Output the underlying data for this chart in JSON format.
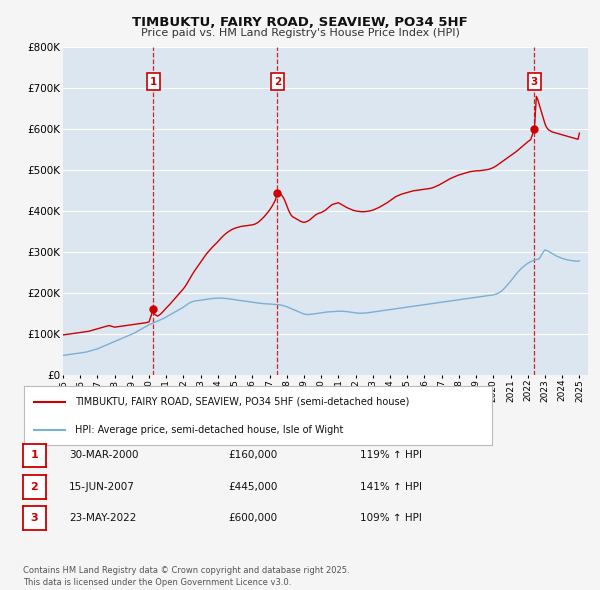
{
  "title": "TIMBUKTU, FAIRY ROAD, SEAVIEW, PO34 5HF",
  "subtitle": "Price paid vs. HM Land Registry's House Price Index (HPI)",
  "background_color": "#f5f5f5",
  "plot_bg_color": "#dce6f0",
  "grid_color": "#ffffff",
  "red_line_color": "#cc0000",
  "blue_line_color": "#7bafd4",
  "ylabel_range": [
    0,
    800000
  ],
  "ytick_step": 100000,
  "xmin": 1995.0,
  "xmax": 2025.5,
  "sale_dates": [
    2000.247,
    2007.458,
    2022.388
  ],
  "sale_prices": [
    160000,
    445000,
    600000
  ],
  "sale_labels": [
    "1",
    "2",
    "3"
  ],
  "sale_date_labels": [
    "30-MAR-2000",
    "15-JUN-2007",
    "23-MAY-2022"
  ],
  "sale_price_labels": [
    "£160,000",
    "£445,000",
    "£600,000"
  ],
  "sale_hpi_labels": [
    "119% ↑ HPI",
    "141% ↑ HPI",
    "109% ↑ HPI"
  ],
  "legend_label_red": "TIMBUKTU, FAIRY ROAD, SEAVIEW, PO34 5HF (semi-detached house)",
  "legend_label_blue": "HPI: Average price, semi-detached house, Isle of Wight",
  "footnote": "Contains HM Land Registry data © Crown copyright and database right 2025.\nThis data is licensed under the Open Government Licence v3.0.",
  "red_line_data_x": [
    1995.0,
    1995.083,
    1995.167,
    1995.25,
    1995.333,
    1995.417,
    1995.5,
    1995.583,
    1995.667,
    1995.75,
    1995.833,
    1995.917,
    1996.0,
    1996.083,
    1996.167,
    1996.25,
    1996.333,
    1996.417,
    1996.5,
    1996.583,
    1996.667,
    1996.75,
    1996.833,
    1996.917,
    1997.0,
    1997.083,
    1997.167,
    1997.25,
    1997.333,
    1997.417,
    1997.5,
    1997.583,
    1997.667,
    1997.75,
    1997.833,
    1997.917,
    1998.0,
    1998.083,
    1998.167,
    1998.25,
    1998.333,
    1998.417,
    1998.5,
    1998.583,
    1998.667,
    1998.75,
    1998.833,
    1998.917,
    1999.0,
    1999.083,
    1999.167,
    1999.25,
    1999.333,
    1999.417,
    1999.5,
    1999.583,
    1999.667,
    1999.75,
    1999.833,
    1999.917,
    2000.0,
    2000.247,
    2000.333,
    2000.5,
    2000.667,
    2000.833,
    2001.0,
    2001.167,
    2001.333,
    2001.5,
    2001.667,
    2001.833,
    2002.0,
    2002.167,
    2002.333,
    2002.5,
    2002.667,
    2002.833,
    2003.0,
    2003.167,
    2003.333,
    2003.5,
    2003.667,
    2003.833,
    2004.0,
    2004.167,
    2004.333,
    2004.5,
    2004.667,
    2004.833,
    2005.0,
    2005.167,
    2005.333,
    2005.5,
    2005.667,
    2005.833,
    2006.0,
    2006.167,
    2006.333,
    2006.5,
    2006.667,
    2006.833,
    2007.0,
    2007.167,
    2007.333,
    2007.458,
    2007.583,
    2007.667,
    2007.75,
    2007.833,
    2007.917,
    2008.0,
    2008.083,
    2008.167,
    2008.25,
    2008.333,
    2008.417,
    2008.5,
    2008.583,
    2008.667,
    2008.75,
    2008.833,
    2008.917,
    2009.0,
    2009.083,
    2009.167,
    2009.25,
    2009.333,
    2009.417,
    2009.5,
    2009.583,
    2009.667,
    2009.75,
    2009.833,
    2009.917,
    2010.0,
    2010.083,
    2010.167,
    2010.25,
    2010.333,
    2010.417,
    2010.5,
    2010.583,
    2010.667,
    2010.75,
    2010.833,
    2010.917,
    2011.0,
    2011.167,
    2011.333,
    2011.5,
    2011.667,
    2011.833,
    2012.0,
    2012.167,
    2012.333,
    2012.5,
    2012.667,
    2012.833,
    2013.0,
    2013.167,
    2013.333,
    2013.5,
    2013.667,
    2013.833,
    2014.0,
    2014.167,
    2014.333,
    2014.5,
    2014.667,
    2014.833,
    2015.0,
    2015.167,
    2015.333,
    2015.5,
    2015.667,
    2015.833,
    2016.0,
    2016.167,
    2016.333,
    2016.5,
    2016.667,
    2016.833,
    2017.0,
    2017.167,
    2017.333,
    2017.5,
    2017.667,
    2017.833,
    2018.0,
    2018.167,
    2018.333,
    2018.5,
    2018.667,
    2018.833,
    2019.0,
    2019.167,
    2019.333,
    2019.5,
    2019.667,
    2019.833,
    2020.0,
    2020.167,
    2020.333,
    2020.5,
    2020.667,
    2020.833,
    2021.0,
    2021.167,
    2021.333,
    2021.5,
    2021.667,
    2021.833,
    2022.0,
    2022.167,
    2022.388,
    2022.5,
    2022.583,
    2022.667,
    2022.75,
    2022.833,
    2022.917,
    2023.0,
    2023.083,
    2023.167,
    2023.25,
    2023.333,
    2023.417,
    2023.5,
    2023.583,
    2023.667,
    2023.75,
    2023.833,
    2023.917,
    2024.0,
    2024.083,
    2024.167,
    2024.25,
    2024.333,
    2024.417,
    2024.5,
    2024.583,
    2024.667,
    2024.75,
    2024.833,
    2024.917,
    2025.0
  ],
  "red_line_data_y": [
    97000,
    97500,
    98000,
    98500,
    99000,
    99500,
    100000,
    100500,
    101000,
    101500,
    102000,
    102500,
    103000,
    103500,
    104000,
    104500,
    105000,
    105500,
    106000,
    107000,
    108000,
    109000,
    110000,
    111000,
    112000,
    113000,
    114000,
    115000,
    116000,
    117000,
    118000,
    119000,
    120000,
    119000,
    118000,
    117000,
    116000,
    116500,
    117000,
    117500,
    118000,
    118500,
    119000,
    119500,
    120000,
    120500,
    121000,
    121500,
    122000,
    122500,
    123000,
    123500,
    124000,
    124500,
    125000,
    125500,
    126000,
    126500,
    127000,
    128000,
    129000,
    160000,
    147000,
    143000,
    148000,
    155000,
    163000,
    170000,
    178000,
    186000,
    194000,
    202000,
    210000,
    220000,
    232000,
    244000,
    255000,
    265000,
    275000,
    285000,
    295000,
    303000,
    311000,
    318000,
    325000,
    333000,
    340000,
    346000,
    351000,
    355000,
    358000,
    360000,
    362000,
    363000,
    364000,
    365000,
    366000,
    368000,
    372000,
    378000,
    385000,
    393000,
    402000,
    413000,
    426000,
    445000,
    443000,
    440000,
    436000,
    430000,
    422000,
    413000,
    404000,
    396000,
    390000,
    386000,
    384000,
    382000,
    380000,
    378000,
    376000,
    374000,
    373000,
    372000,
    373000,
    374000,
    376000,
    378000,
    381000,
    384000,
    387000,
    390000,
    392000,
    394000,
    395000,
    396000,
    398000,
    400000,
    402000,
    405000,
    408000,
    411000,
    414000,
    416000,
    417000,
    418000,
    419000,
    420000,
    416000,
    412000,
    408000,
    405000,
    402000,
    400000,
    399000,
    398000,
    398000,
    399000,
    400000,
    402000,
    405000,
    408000,
    412000,
    416000,
    420000,
    425000,
    430000,
    435000,
    438000,
    441000,
    443000,
    445000,
    447000,
    449000,
    450000,
    451000,
    452000,
    453000,
    454000,
    455000,
    457000,
    460000,
    463000,
    467000,
    471000,
    475000,
    479000,
    482000,
    485000,
    488000,
    490000,
    492000,
    494000,
    496000,
    497000,
    498000,
    498000,
    499000,
    500000,
    501000,
    503000,
    506000,
    510000,
    515000,
    520000,
    525000,
    530000,
    535000,
    540000,
    545000,
    551000,
    557000,
    563000,
    569000,
    574000,
    600000,
    680000,
    672000,
    660000,
    648000,
    636000,
    624000,
    613000,
    605000,
    600000,
    597000,
    595000,
    593000,
    592000,
    591000,
    590000,
    589000,
    588000,
    587000,
    586000,
    585000,
    584000,
    583000,
    582000,
    581000,
    580000,
    579000,
    578000,
    577000,
    576000,
    575000,
    590000
  ],
  "blue_line_data_x": [
    1995.0,
    1995.083,
    1995.167,
    1995.25,
    1995.333,
    1995.417,
    1995.5,
    1995.583,
    1995.667,
    1995.75,
    1995.833,
    1995.917,
    1996.0,
    1996.083,
    1996.167,
    1996.25,
    1996.333,
    1996.417,
    1996.5,
    1996.583,
    1996.667,
    1996.75,
    1996.833,
    1996.917,
    1997.0,
    1997.083,
    1997.167,
    1997.25,
    1997.333,
    1997.417,
    1997.5,
    1997.583,
    1997.667,
    1997.75,
    1997.833,
    1997.917,
    1998.0,
    1998.083,
    1998.167,
    1998.25,
    1998.333,
    1998.417,
    1998.5,
    1998.583,
    1998.667,
    1998.75,
    1998.833,
    1998.917,
    1999.0,
    1999.083,
    1999.167,
    1999.25,
    1999.333,
    1999.417,
    1999.5,
    1999.583,
    1999.667,
    1999.75,
    1999.833,
    1999.917,
    2000.0,
    2000.167,
    2000.333,
    2000.5,
    2000.667,
    2000.833,
    2001.0,
    2001.167,
    2001.333,
    2001.5,
    2001.667,
    2001.833,
    2002.0,
    2002.167,
    2002.333,
    2002.5,
    2002.667,
    2002.833,
    2003.0,
    2003.167,
    2003.333,
    2003.5,
    2003.667,
    2003.833,
    2004.0,
    2004.167,
    2004.333,
    2004.5,
    2004.667,
    2004.833,
    2005.0,
    2005.167,
    2005.333,
    2005.5,
    2005.667,
    2005.833,
    2006.0,
    2006.167,
    2006.333,
    2006.5,
    2006.667,
    2006.833,
    2007.0,
    2007.167,
    2007.333,
    2007.5,
    2007.667,
    2007.833,
    2008.0,
    2008.167,
    2008.333,
    2008.5,
    2008.667,
    2008.833,
    2009.0,
    2009.167,
    2009.333,
    2009.5,
    2009.667,
    2009.833,
    2010.0,
    2010.167,
    2010.333,
    2010.5,
    2010.667,
    2010.833,
    2011.0,
    2011.167,
    2011.333,
    2011.5,
    2011.667,
    2011.833,
    2012.0,
    2012.167,
    2012.333,
    2012.5,
    2012.667,
    2012.833,
    2013.0,
    2013.167,
    2013.333,
    2013.5,
    2013.667,
    2013.833,
    2014.0,
    2014.167,
    2014.333,
    2014.5,
    2014.667,
    2014.833,
    2015.0,
    2015.167,
    2015.333,
    2015.5,
    2015.667,
    2015.833,
    2016.0,
    2016.167,
    2016.333,
    2016.5,
    2016.667,
    2016.833,
    2017.0,
    2017.167,
    2017.333,
    2017.5,
    2017.667,
    2017.833,
    2018.0,
    2018.167,
    2018.333,
    2018.5,
    2018.667,
    2018.833,
    2019.0,
    2019.167,
    2019.333,
    2019.5,
    2019.667,
    2019.833,
    2020.0,
    2020.167,
    2020.333,
    2020.5,
    2020.667,
    2020.833,
    2021.0,
    2021.167,
    2021.333,
    2021.5,
    2021.667,
    2021.833,
    2022.0,
    2022.167,
    2022.333,
    2022.5,
    2022.667,
    2022.833,
    2023.0,
    2023.167,
    2023.333,
    2023.5,
    2023.667,
    2023.833,
    2024.0,
    2024.167,
    2024.333,
    2024.5,
    2024.667,
    2024.833,
    2025.0
  ],
  "blue_line_data_y": [
    47000,
    47500,
    48000,
    48500,
    49000,
    49500,
    50000,
    50500,
    51000,
    51500,
    52000,
    52500,
    53000,
    53500,
    54000,
    54500,
    55000,
    56000,
    57000,
    58000,
    59000,
    60000,
    61000,
    62000,
    63000,
    64500,
    66000,
    67500,
    69000,
    70500,
    72000,
    73500,
    75000,
    76500,
    78000,
    79500,
    81000,
    82500,
    84000,
    85500,
    87000,
    88500,
    90000,
    91500,
    93000,
    94500,
    96000,
    97500,
    99000,
    100500,
    102000,
    104000,
    106000,
    108000,
    110000,
    112000,
    114000,
    116000,
    118000,
    120000,
    122000,
    125000,
    128000,
    131000,
    134000,
    137000,
    141000,
    145000,
    149000,
    153000,
    157000,
    161000,
    165000,
    170000,
    175000,
    178000,
    180000,
    181000,
    182000,
    183000,
    184000,
    185000,
    186000,
    186500,
    187000,
    187000,
    186500,
    186000,
    185000,
    184000,
    183000,
    182000,
    181000,
    180000,
    179000,
    178000,
    177000,
    176000,
    175000,
    174000,
    173500,
    173000,
    172500,
    172000,
    171500,
    171000,
    170000,
    168000,
    166000,
    163000,
    160000,
    157000,
    154000,
    151000,
    148000,
    147000,
    147000,
    148000,
    149000,
    150000,
    151000,
    152000,
    153000,
    153500,
    154000,
    154500,
    155000,
    155000,
    154500,
    154000,
    153000,
    152000,
    151000,
    150000,
    150000,
    150500,
    151000,
    152000,
    153000,
    154000,
    155000,
    156000,
    157000,
    158000,
    159000,
    160000,
    161000,
    162000,
    163000,
    164000,
    165000,
    166000,
    167000,
    168000,
    169000,
    170000,
    171000,
    172000,
    173000,
    174000,
    175000,
    176000,
    177000,
    178000,
    179000,
    180000,
    181000,
    182000,
    183000,
    184000,
    185000,
    186000,
    187000,
    188000,
    189000,
    190000,
    191000,
    192000,
    193000,
    194000,
    195000,
    197000,
    200000,
    205000,
    212000,
    220000,
    228000,
    237000,
    246000,
    254000,
    261000,
    267000,
    272000,
    276000,
    279000,
    281000,
    283000,
    295000,
    305000,
    302000,
    298000,
    294000,
    290000,
    287000,
    284000,
    282000,
    280000,
    279000,
    278000,
    277000,
    278000
  ]
}
